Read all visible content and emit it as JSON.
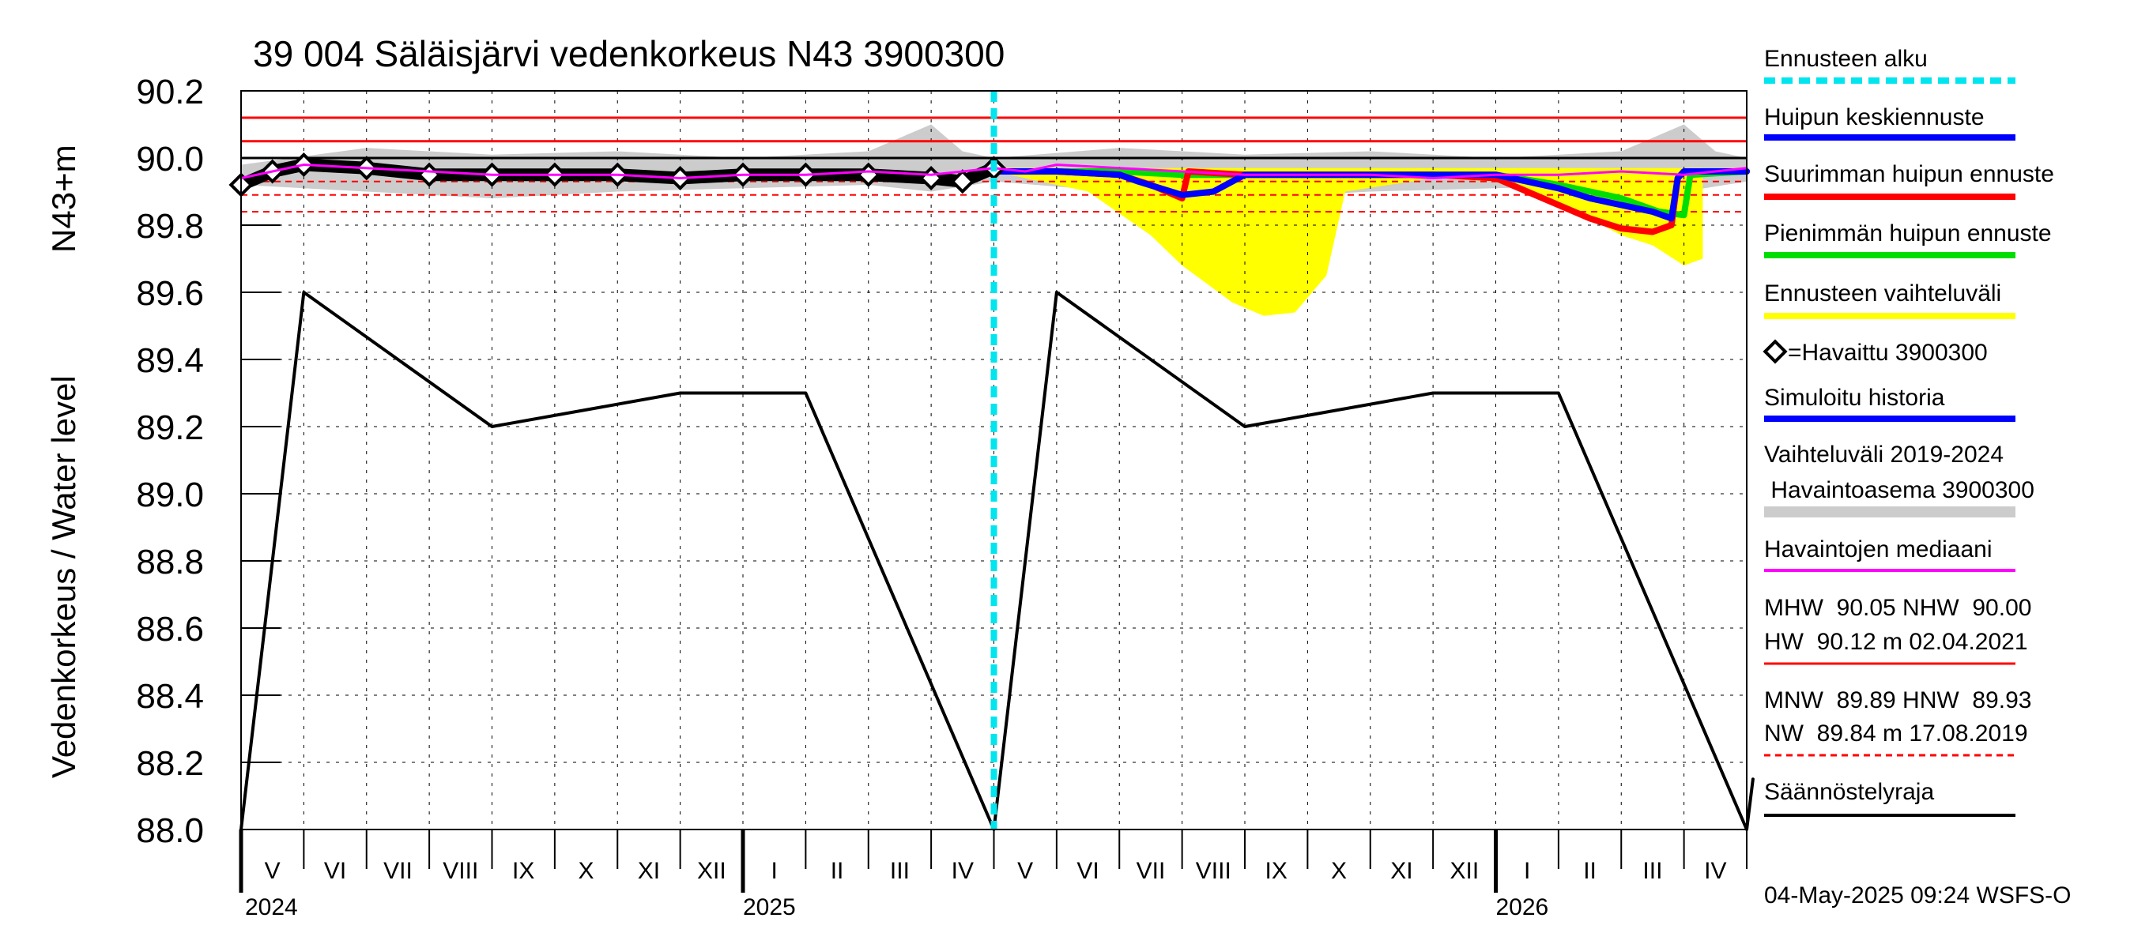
{
  "chart_data": {
    "type": "line",
    "title": "39 004 Säläisjärvi vedenkorkeus N43 3900300",
    "ylabel": "Vedenkorkeus / Water level",
    "ylabel_unit": "N43+m",
    "ylim": [
      88.0,
      90.2
    ],
    "yticks": [
      "88.0",
      "88.2",
      "88.4",
      "88.6",
      "88.8",
      "89.0",
      "89.2",
      "89.4",
      "89.6",
      "89.8",
      "90.0",
      "90.2"
    ],
    "months": [
      "V",
      "VI",
      "VII",
      "VIII",
      "IX",
      "X",
      "XI",
      "XII",
      "I",
      "II",
      "III",
      "IV",
      "V",
      "VI",
      "VII",
      "VIII",
      "IX",
      "X",
      "XI",
      "XII",
      "I",
      "II",
      "III",
      "IV"
    ],
    "years": [
      {
        "label": "2024",
        "month_index": 0
      },
      {
        "label": "2025",
        "month_index": 8
      },
      {
        "label": "2026",
        "month_index": 20
      }
    ],
    "forecast_start_month": 12,
    "reference_lines": [
      {
        "name": "HW",
        "value": 90.12,
        "color": "#ff0000",
        "style": "solid"
      },
      {
        "name": "MHW",
        "value": 90.05,
        "color": "#ff0000",
        "style": "solid"
      },
      {
        "name": "NHW",
        "value": 90.0,
        "color": "#000000",
        "style": "solid"
      },
      {
        "name": "HNW",
        "value": 89.93,
        "color": "#ff0000",
        "style": "dashed"
      },
      {
        "name": "MNW",
        "value": 89.89,
        "color": "#ff0000",
        "style": "dashed"
      },
      {
        "name": "NW",
        "value": 89.84,
        "color": "#ff0000",
        "style": "dashed"
      }
    ],
    "series": [
      {
        "name": "Säännöstelyraja",
        "color": "#000000",
        "points": [
          [
            0,
            88.0
          ],
          [
            1,
            89.6
          ],
          [
            4,
            89.2
          ],
          [
            7,
            89.3
          ],
          [
            9,
            89.3
          ],
          [
            12,
            88.0
          ],
          [
            13,
            89.6
          ],
          [
            16,
            89.2
          ],
          [
            19,
            89.3
          ],
          [
            21,
            89.3
          ],
          [
            24,
            88.0
          ],
          [
            24.1,
            88.15
          ]
        ]
      },
      {
        "name": "Havaintojen mediaani",
        "color": "#ff00ff",
        "points": [
          [
            0,
            89.94
          ],
          [
            0.5,
            89.96
          ],
          [
            1,
            89.98
          ],
          [
            2,
            89.97
          ],
          [
            3,
            89.96
          ],
          [
            4,
            89.95
          ],
          [
            5,
            89.95
          ],
          [
            6,
            89.95
          ],
          [
            7,
            89.94
          ],
          [
            8,
            89.95
          ],
          [
            9,
            89.95
          ],
          [
            10,
            89.96
          ],
          [
            11,
            89.95
          ],
          [
            12,
            89.97
          ],
          [
            12.5,
            89.96
          ],
          [
            13,
            89.98
          ],
          [
            14,
            89.97
          ],
          [
            15,
            89.96
          ],
          [
            16,
            89.95
          ],
          [
            17,
            89.95
          ],
          [
            18,
            89.95
          ],
          [
            19,
            89.94
          ],
          [
            20,
            89.95
          ],
          [
            21,
            89.95
          ],
          [
            22,
            89.96
          ],
          [
            23,
            89.95
          ],
          [
            24,
            89.97
          ]
        ]
      },
      {
        "name": "Havaittu 3900300",
        "color": "#000000",
        "points": [
          [
            0,
            89.92
          ],
          [
            0.5,
            89.96
          ],
          [
            1,
            89.98
          ],
          [
            2,
            89.97
          ],
          [
            3,
            89.95
          ],
          [
            4,
            89.95
          ],
          [
            5,
            89.95
          ],
          [
            6,
            89.95
          ],
          [
            7,
            89.94
          ],
          [
            8,
            89.95
          ],
          [
            9,
            89.95
          ],
          [
            10,
            89.95
          ],
          [
            11,
            89.94
          ],
          [
            11.5,
            89.93
          ],
          [
            12,
            89.97
          ]
        ]
      },
      {
        "name": "Huipun keskiennuste",
        "color": "#0000ff",
        "points": [
          [
            12,
            89.96
          ],
          [
            13,
            89.96
          ],
          [
            14,
            89.95
          ],
          [
            14.3,
            89.93
          ],
          [
            15,
            89.89
          ],
          [
            15.5,
            89.9
          ],
          [
            16,
            89.95
          ],
          [
            17,
            89.95
          ],
          [
            18,
            89.95
          ],
          [
            19,
            89.95
          ],
          [
            20,
            89.95
          ],
          [
            21,
            89.91
          ],
          [
            21.5,
            89.88
          ],
          [
            22,
            89.86
          ],
          [
            22.5,
            89.84
          ],
          [
            22.8,
            89.82
          ],
          [
            22.9,
            89.94
          ],
          [
            23,
            89.96
          ],
          [
            24,
            89.96
          ]
        ]
      },
      {
        "name": "Suurimman huipun ennuste",
        "color": "#ff0000",
        "points": [
          [
            12,
            89.96
          ],
          [
            13,
            89.96
          ],
          [
            14,
            89.95
          ],
          [
            14.5,
            89.92
          ],
          [
            15,
            89.88
          ],
          [
            15.1,
            89.96
          ],
          [
            16,
            89.95
          ],
          [
            17,
            89.95
          ],
          [
            18,
            89.95
          ],
          [
            19,
            89.95
          ],
          [
            20,
            89.94
          ],
          [
            21,
            89.86
          ],
          [
            21.5,
            89.82
          ],
          [
            22,
            89.79
          ],
          [
            22.5,
            89.78
          ],
          [
            22.8,
            89.8
          ],
          [
            22.9,
            89.94
          ],
          [
            23,
            89.96
          ],
          [
            24,
            89.96
          ]
        ]
      },
      {
        "name": "Pienimmän huipun ennuste",
        "color": "#00dd00",
        "points": [
          [
            12,
            89.96
          ],
          [
            13,
            89.96
          ],
          [
            14,
            89.96
          ],
          [
            15,
            89.95
          ],
          [
            16,
            89.95
          ],
          [
            17,
            89.95
          ],
          [
            18,
            89.95
          ],
          [
            19,
            89.95
          ],
          [
            20,
            89.95
          ],
          [
            21,
            89.92
          ],
          [
            22,
            89.88
          ],
          [
            22.6,
            89.84
          ],
          [
            23,
            89.83
          ],
          [
            23.1,
            89.95
          ],
          [
            24,
            89.96
          ]
        ]
      }
    ],
    "bands": [
      {
        "name": "Ennusteen vaihteluväli",
        "color": "#ffff00",
        "upper": [
          [
            12,
            89.97
          ],
          [
            13,
            89.97
          ],
          [
            14,
            89.97
          ],
          [
            15,
            89.97
          ],
          [
            16,
            89.97
          ],
          [
            17,
            89.97
          ],
          [
            18,
            89.97
          ],
          [
            19,
            89.97
          ],
          [
            20,
            89.97
          ],
          [
            21,
            89.97
          ],
          [
            22,
            89.97
          ],
          [
            23,
            89.97
          ],
          [
            23.3,
            89.97
          ]
        ],
        "lower": [
          [
            23.3,
            89.7
          ],
          [
            23,
            89.68
          ],
          [
            22.5,
            89.74
          ],
          [
            22,
            89.77
          ],
          [
            21.5,
            89.82
          ],
          [
            21,
            89.86
          ],
          [
            20,
            89.93
          ],
          [
            19,
            89.94
          ],
          [
            17.6,
            89.9
          ],
          [
            17.3,
            89.65
          ],
          [
            16.8,
            89.54
          ],
          [
            16.3,
            89.53
          ],
          [
            15.8,
            89.57
          ],
          [
            15,
            89.68
          ],
          [
            14.5,
            89.77
          ],
          [
            13.5,
            89.9
          ],
          [
            13,
            89.92
          ],
          [
            12,
            89.96
          ]
        ]
      },
      {
        "name": "Vaihteluväli 2019-2024 Havaintoasema 3900300",
        "color": "#cccccc",
        "upper": [
          [
            0,
            89.98
          ],
          [
            2,
            90.03
          ],
          [
            4,
            90.01
          ],
          [
            6,
            90.02
          ],
          [
            8,
            90.0
          ],
          [
            10,
            90.02
          ],
          [
            11,
            90.1
          ],
          [
            11.5,
            90.02
          ],
          [
            12,
            90.0
          ],
          [
            14,
            90.03
          ],
          [
            16,
            90.01
          ],
          [
            18,
            90.02
          ],
          [
            20,
            90.0
          ],
          [
            22,
            90.02
          ],
          [
            23,
            90.1
          ],
          [
            23.5,
            90.02
          ],
          [
            24,
            90.0
          ]
        ],
        "lower": [
          [
            24,
            89.93
          ],
          [
            23,
            89.9
          ],
          [
            22,
            89.92
          ],
          [
            20,
            89.91
          ],
          [
            18,
            89.9
          ],
          [
            16,
            89.88
          ],
          [
            14,
            89.9
          ],
          [
            12,
            89.93
          ],
          [
            11,
            89.9
          ],
          [
            10,
            89.92
          ],
          [
            8,
            89.91
          ],
          [
            6,
            89.9
          ],
          [
            4,
            89.88
          ],
          [
            2,
            89.9
          ],
          [
            0,
            89.92
          ]
        ]
      }
    ]
  },
  "legend": {
    "forecast_start": "Ennusteen alku",
    "mean_forecast": "Huipun keskiennuste",
    "max_forecast": "Suurimman huipun ennuste",
    "min_forecast": "Pienimmän huipun ennuste",
    "forecast_range": "Ennusteen vaihteluväli",
    "observed": "=Havaittu 3900300",
    "simulated": "Simuloitu historia",
    "history_range_1": "Vaihteluväli 2019-2024",
    "history_range_2": " Havaintoasema 3900300",
    "median": "Havaintojen mediaani",
    "stats_high_1": "MHW  90.05 NHW  90.00",
    "stats_high_2": "HW  90.12 m 02.04.2021",
    "stats_low_1": "MNW  89.89 HNW  89.93",
    "stats_low_2": "NW  89.84 m 17.08.2019",
    "regulation": "Säännöstelyraja"
  },
  "colors": {
    "forecast_start": "#00e5ee",
    "mean": "#0000ff",
    "max": "#ff0000",
    "min": "#00dd00",
    "range": "#ffff00",
    "simulated": "#0000ff",
    "history": "#cccccc",
    "median": "#ff00ff",
    "hw": "#ff0000",
    "nw": "#ff0000",
    "regulation": "#000000"
  },
  "footer": "04-May-2025 09:24 WSFS-O"
}
